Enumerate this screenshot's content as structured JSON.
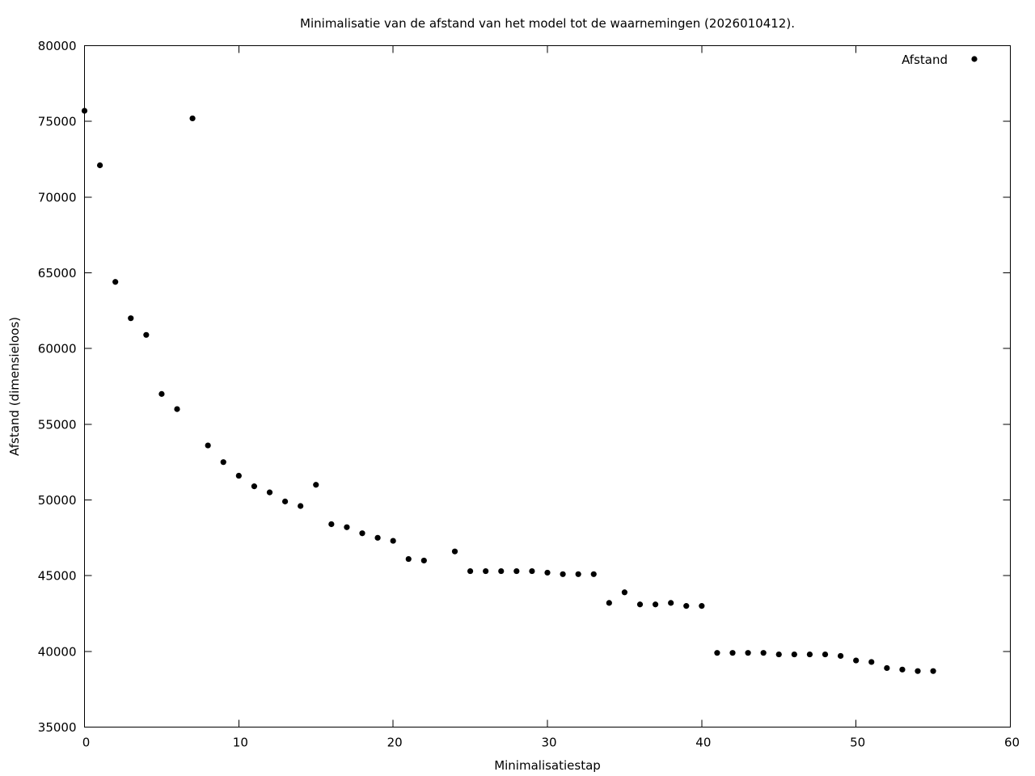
{
  "chart_data": {
    "type": "scatter",
    "title": "Minimalisatie van de afstand van het model tot de waarnemingen (2026010412).",
    "xlabel": "Minimalisatiestap",
    "ylabel": "Afstand (dimensieloos)",
    "xlim": [
      0,
      60
    ],
    "ylim": [
      35000,
      80000
    ],
    "x_ticks": [
      0,
      10,
      20,
      30,
      40,
      50,
      60
    ],
    "y_ticks": [
      35000,
      40000,
      45000,
      50000,
      55000,
      60000,
      65000,
      70000,
      75000,
      80000
    ],
    "grid": false,
    "legend_position": "top-right",
    "marker_color": "#000000",
    "series": [
      {
        "name": "Afstand",
        "x": [
          0,
          1,
          2,
          3,
          4,
          5,
          6,
          7,
          8,
          9,
          10,
          11,
          12,
          13,
          14,
          15,
          16,
          17,
          18,
          19,
          20,
          21,
          22,
          24,
          25,
          26,
          27,
          28,
          29,
          30,
          31,
          32,
          33,
          34,
          35,
          36,
          37,
          38,
          39,
          40,
          41,
          42,
          43,
          44,
          45,
          46,
          47,
          48,
          49,
          50,
          51,
          52,
          53,
          54,
          55
        ],
        "values": [
          75700,
          72100,
          64400,
          62000,
          60900,
          57000,
          56000,
          75200,
          53600,
          52500,
          51600,
          50900,
          50500,
          49900,
          49600,
          51000,
          48400,
          48200,
          47800,
          47500,
          47300,
          46100,
          46000,
          46600,
          45300,
          45300,
          45300,
          45300,
          45300,
          45200,
          45100,
          45100,
          45100,
          43200,
          43900,
          43100,
          43100,
          43200,
          43000,
          43000,
          39900,
          39900,
          39900,
          39900,
          39800,
          39800,
          39800,
          39800,
          39700,
          39400,
          39300,
          38900,
          38800,
          38700,
          38700
        ]
      }
    ]
  }
}
